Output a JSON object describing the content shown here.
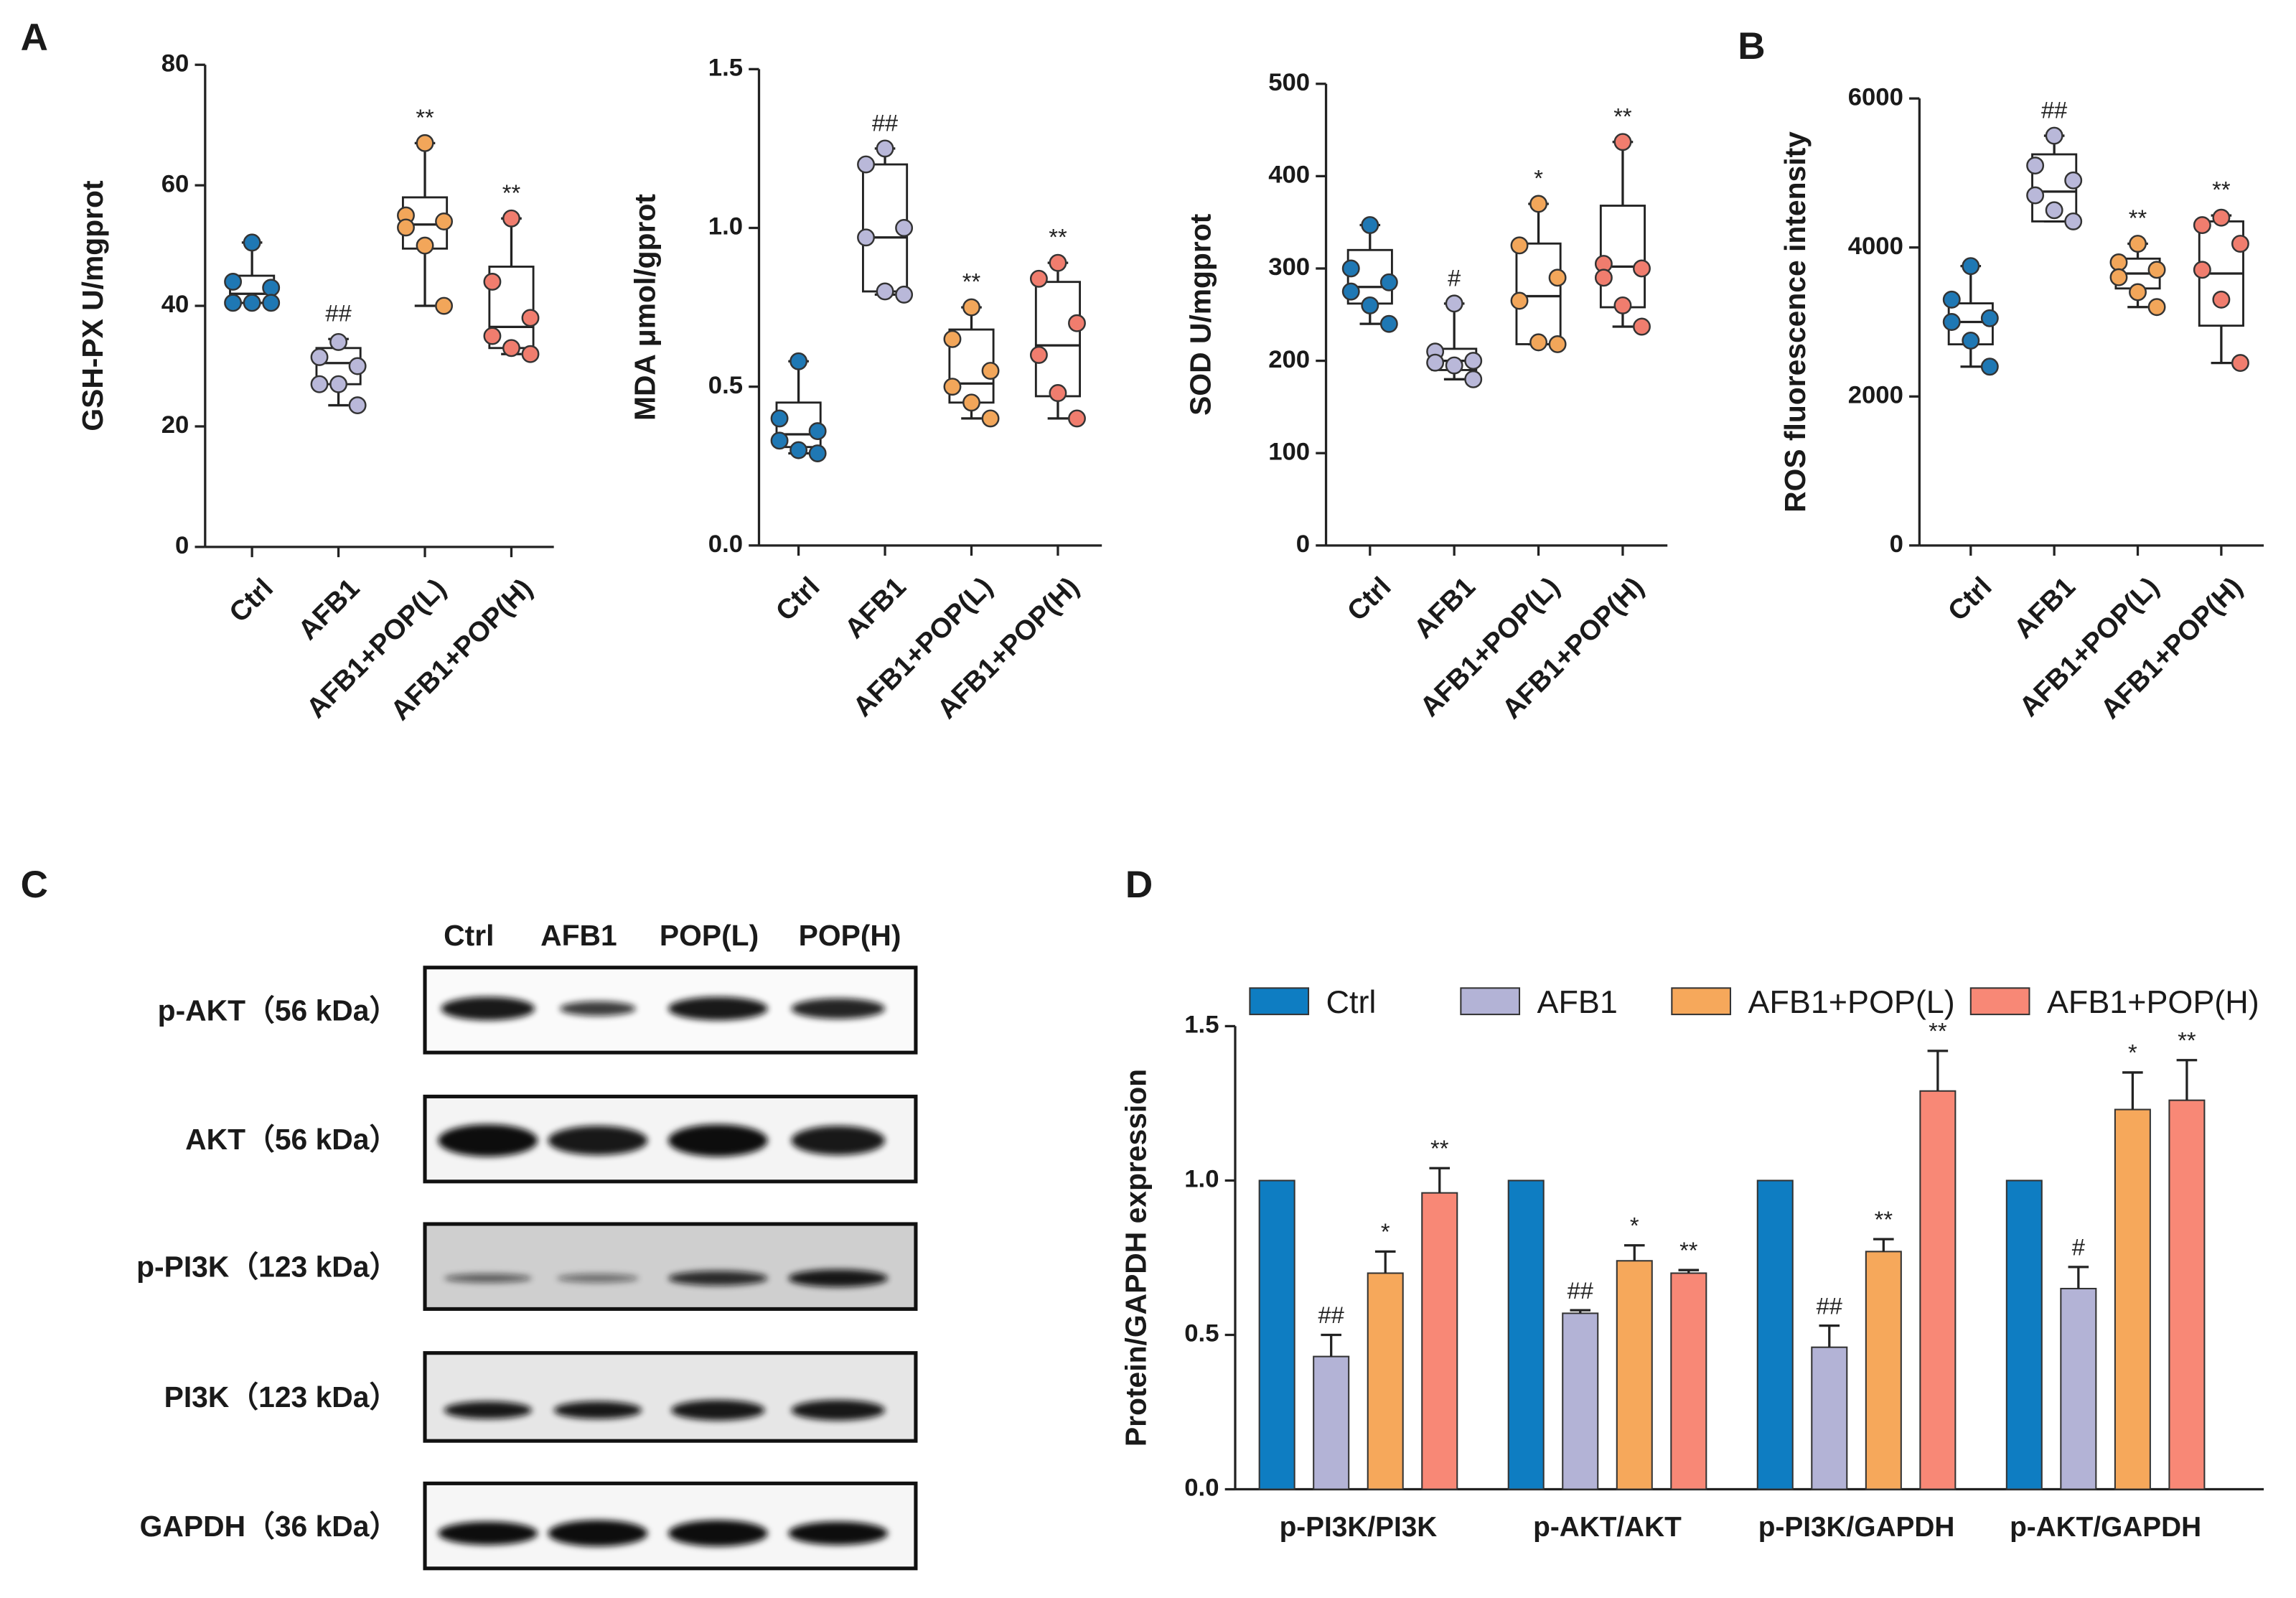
{
  "panels": {
    "a": "A",
    "b": "B",
    "c": "C",
    "d": "D"
  },
  "blot": {
    "lanes": [
      "Ctrl",
      "AFB1",
      "POP(L)",
      "POP(H)"
    ],
    "rows": [
      "p-AKT（56 kDa）",
      "AKT（56 kDa）",
      "p-PI3K（123 kDa）",
      "PI3K（123 kDa）",
      "GAPDH（36 kDa）"
    ]
  },
  "chart_data": [
    {
      "type": "box",
      "ylabel": "GSH-PX  U/mgprot",
      "categories": [
        "Ctrl",
        "AFB1",
        "AFB1+POP(L)",
        "AFB1+POP(H)"
      ],
      "ylim": [
        0,
        80
      ],
      "yticks": [
        0,
        20,
        40,
        60,
        80
      ],
      "colors": [
        "#1f78b4",
        "#b9b8d9",
        "#f2a65a",
        "#f07d6e"
      ],
      "points": [
        [
          50.5,
          44,
          43,
          40.5,
          40.5,
          40.5
        ],
        [
          34,
          31.5,
          30,
          27,
          27,
          23.5
        ],
        [
          67,
          55,
          54,
          53,
          50,
          40
        ],
        [
          54.5,
          44,
          38,
          35,
          33,
          32
        ]
      ],
      "boxes": [
        [
          40.5,
          40.5,
          42,
          45,
          50.5
        ],
        [
          23.5,
          27,
          30.5,
          33,
          34.5
        ],
        [
          40,
          49.5,
          53.5,
          58,
          67
        ],
        [
          32,
          33,
          36.5,
          46.5,
          54.5
        ]
      ],
      "annotations": [
        null,
        "##",
        "**",
        "**"
      ]
    },
    {
      "type": "box",
      "ylabel": "MDA μmol/gprot",
      "categories": [
        "Ctrl",
        "AFB1",
        "AFB1+POP(L)",
        "AFB1+POP(H)"
      ],
      "ylim": [
        0,
        1.5
      ],
      "yticks": [
        {
          "value": 0,
          "label": "0.0"
        },
        0.5,
        {
          "value": 1,
          "label": "1.0"
        },
        1.5
      ],
      "colors": [
        "#1f78b4",
        "#b9b8d9",
        "#f2a65a",
        "#f07d6e"
      ],
      "points": [
        [
          0.58,
          0.4,
          0.36,
          0.33,
          0.3,
          0.29
        ],
        [
          1.25,
          1.2,
          1.0,
          0.97,
          0.8,
          0.79
        ],
        [
          0.75,
          0.65,
          0.55,
          0.5,
          0.45,
          0.4
        ],
        [
          0.89,
          0.84,
          0.7,
          0.6,
          0.48,
          0.4
        ]
      ],
      "boxes": [
        [
          0.29,
          0.31,
          0.35,
          0.45,
          0.58
        ],
        [
          0.79,
          0.8,
          0.97,
          1.2,
          1.25
        ],
        [
          0.4,
          0.45,
          0.51,
          0.68,
          0.75
        ],
        [
          0.4,
          0.47,
          0.63,
          0.83,
          0.89
        ]
      ],
      "annotations": [
        null,
        "##",
        "**",
        "**"
      ]
    },
    {
      "type": "box",
      "ylabel": "SOD  U/mgprot",
      "categories": [
        "Ctrl",
        "AFB1",
        "AFB1+POP(L)",
        "AFB1+POP(H)"
      ],
      "ylim": [
        0,
        500
      ],
      "yticks": [
        0,
        100,
        200,
        300,
        400,
        500
      ],
      "colors": [
        "#1f78b4",
        "#b9b8d9",
        "#f2a65a",
        "#f07d6e"
      ],
      "points": [
        [
          347,
          300,
          285,
          275,
          260,
          240
        ],
        [
          262,
          210,
          200,
          198,
          195,
          180
        ],
        [
          370,
          325,
          290,
          265,
          220,
          218
        ],
        [
          437,
          305,
          300,
          290,
          260,
          237
        ]
      ],
      "boxes": [
        [
          240,
          262,
          280,
          320,
          347
        ],
        [
          180,
          190,
          200,
          213,
          262
        ],
        [
          218,
          218,
          270,
          327,
          370
        ],
        [
          237,
          258,
          302,
          368,
          437
        ]
      ],
      "annotations": [
        null,
        "#",
        "*",
        "**"
      ]
    },
    {
      "type": "box",
      "ylabel": "ROS fluorescence intensity",
      "categories": [
        "Ctrl",
        "AFB1",
        "AFB1+POP(L)",
        "AFB1+POP(H)"
      ],
      "ylim": [
        0,
        6000
      ],
      "yticks": [
        0,
        2000,
        4000,
        6000
      ],
      "colors": [
        "#1f78b4",
        "#b9b8d9",
        "#f2a65a",
        "#f07d6e"
      ],
      "points": [
        [
          3750,
          3300,
          3050,
          3000,
          2750,
          2400
        ],
        [
          5500,
          5100,
          4900,
          4700,
          4500,
          4350
        ],
        [
          4050,
          3800,
          3700,
          3600,
          3400,
          3200
        ],
        [
          4400,
          4300,
          4050,
          3700,
          3300,
          2450
        ]
      ],
      "boxes": [
        [
          2400,
          2700,
          3000,
          3250,
          3750
        ],
        [
          4350,
          4350,
          4750,
          5250,
          5500
        ],
        [
          3200,
          3450,
          3650,
          3850,
          4050
        ],
        [
          2450,
          2950,
          3650,
          4350,
          4430
        ]
      ],
      "annotations": [
        null,
        "##",
        "**",
        "**"
      ]
    },
    {
      "type": "bar",
      "ylabel": "Protein/GAPDH expression",
      "categories": [
        "p-PI3K/PI3K",
        "p-AKT/AKT",
        "p-PI3K/GAPDH",
        "p-AKT/GAPDH"
      ],
      "ylim": [
        0,
        1.5
      ],
      "yticks": [
        {
          "value": 0,
          "label": "0.0"
        },
        0.5,
        {
          "value": 1,
          "label": "1.0"
        },
        1.5
      ],
      "legend": "top",
      "series": [
        {
          "name": "Ctrl",
          "color": "#0e7dc2",
          "values": [
            1,
            1,
            1,
            1
          ],
          "errors": [
            null,
            null,
            null,
            null
          ],
          "annotations": [
            null,
            null,
            null,
            null
          ]
        },
        {
          "name": "AFB1",
          "color": "#b3b3d6",
          "values": [
            0.43,
            0.57,
            0.46,
            0.65
          ],
          "errors": [
            0.07,
            0.01,
            0.07,
            0.07
          ],
          "annotations": [
            "##",
            "##",
            "##",
            "#"
          ]
        },
        {
          "name": "AFB1+POP(L)",
          "color": "#f6a85b",
          "values": [
            0.7,
            0.74,
            0.77,
            1.23
          ],
          "errors": [
            0.07,
            0.05,
            0.04,
            0.12
          ],
          "annotations": [
            "*",
            "*",
            "**",
            "*"
          ]
        },
        {
          "name": "AFB1+POP(H)",
          "color": "#f88876",
          "values": [
            0.96,
            0.7,
            1.29,
            1.26
          ],
          "errors": [
            0.08,
            0.01,
            0.13,
            0.13
          ],
          "annotations": [
            "**",
            "**",
            "**",
            "**"
          ]
        }
      ]
    }
  ]
}
